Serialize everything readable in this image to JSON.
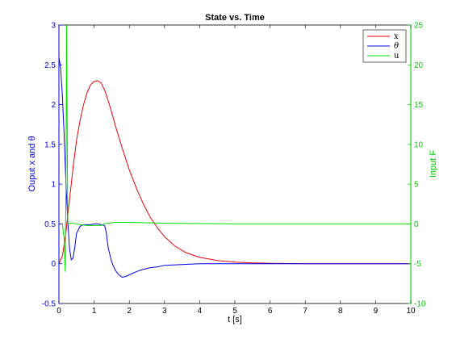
{
  "chart_data": {
    "type": "line",
    "title": "State vs. Time",
    "xlabel": "t [s]",
    "ylabel_left": "Ouput x and θ",
    "ylabel_right": "Input F",
    "xlim": [
      0,
      10
    ],
    "ylim_left": [
      -0.5,
      3
    ],
    "ylim_right": [
      -10,
      25
    ],
    "x_ticks": [
      "0",
      "1",
      "2",
      "3",
      "4",
      "5",
      "6",
      "7",
      "8",
      "9",
      "10"
    ],
    "y_left_ticks": [
      "-0.5",
      "0",
      "0.5",
      "1",
      "1.5",
      "2",
      "2.5",
      "3"
    ],
    "y_right_ticks": [
      "-10",
      "-5",
      "0",
      "5",
      "10",
      "15",
      "20",
      "25"
    ],
    "grid": false,
    "legend_position": "top-right",
    "colors": {
      "x": "#e8000b",
      "theta": "#0000e0",
      "u": "#00e000",
      "left_axis": "#0000e0",
      "right_axis": "#00cc00"
    },
    "series": [
      {
        "name": "x",
        "axis": "left",
        "color": "#e8000b",
        "x": [
          0,
          0.1,
          0.2,
          0.3,
          0.4,
          0.5,
          0.6,
          0.7,
          0.8,
          0.9,
          1.0,
          1.1,
          1.2,
          1.3,
          1.4,
          1.5,
          1.6,
          1.8,
          2.0,
          2.2,
          2.4,
          2.6,
          2.8,
          3.0,
          3.3,
          3.6,
          4.0,
          4.5,
          5.0,
          5.5,
          6.0,
          7.0,
          8.0,
          9.0,
          10.0
        ],
        "y": [
          0,
          0.1,
          0.4,
          0.8,
          1.2,
          1.55,
          1.8,
          2.0,
          2.15,
          2.25,
          2.29,
          2.3,
          2.27,
          2.18,
          2.05,
          1.9,
          1.74,
          1.45,
          1.18,
          0.95,
          0.75,
          0.58,
          0.45,
          0.34,
          0.22,
          0.14,
          0.08,
          0.04,
          0.02,
          0.01,
          0.005,
          0,
          0,
          0,
          0
        ]
      },
      {
        "name": "θ",
        "axis": "left",
        "color": "#0000e0",
        "x": [
          0,
          0.05,
          0.1,
          0.15,
          0.2,
          0.25,
          0.3,
          0.35,
          0.4,
          0.45,
          0.5,
          0.6,
          0.7,
          0.8,
          0.9,
          1.0,
          1.1,
          1.2,
          1.3,
          1.35,
          1.4,
          1.5,
          1.6,
          1.7,
          1.8,
          1.9,
          2.0,
          2.2,
          2.4,
          2.6,
          2.8,
          3.0,
          3.5,
          4.0,
          5.0,
          6.0,
          7.0,
          8.0,
          9.0,
          10.0
        ],
        "y": [
          2.6,
          2.45,
          2.1,
          1.6,
          1.0,
          0.55,
          0.2,
          0.05,
          0.07,
          0.2,
          0.38,
          0.47,
          0.49,
          0.49,
          0.49,
          0.5,
          0.5,
          0.49,
          0.48,
          0.38,
          0.2,
          0.02,
          -0.08,
          -0.14,
          -0.17,
          -0.16,
          -0.14,
          -0.1,
          -0.07,
          -0.05,
          -0.04,
          -0.02,
          -0.01,
          0,
          0,
          0,
          0,
          0,
          0,
          0
        ]
      },
      {
        "name": "u",
        "axis": "right",
        "color": "#00e000",
        "x": [
          0,
          0.05,
          0.1,
          0.15,
          0.18,
          0.2,
          0.22,
          0.25,
          0.3,
          0.4,
          0.5,
          0.6,
          0.8,
          1.0,
          1.2,
          1.3,
          1.4,
          1.6,
          2.0,
          3.0,
          4.0,
          5.0,
          6.0,
          7.0,
          8.0,
          9.0,
          10.0
        ],
        "y": [
          0,
          0,
          0,
          -2,
          -6,
          5,
          25,
          0,
          0.1,
          0.1,
          0,
          -0.1,
          -0.2,
          -0.2,
          -0.2,
          0.05,
          0.1,
          0.2,
          0.2,
          0.1,
          0.05,
          0,
          0,
          0,
          0,
          0,
          0
        ]
      }
    ]
  }
}
